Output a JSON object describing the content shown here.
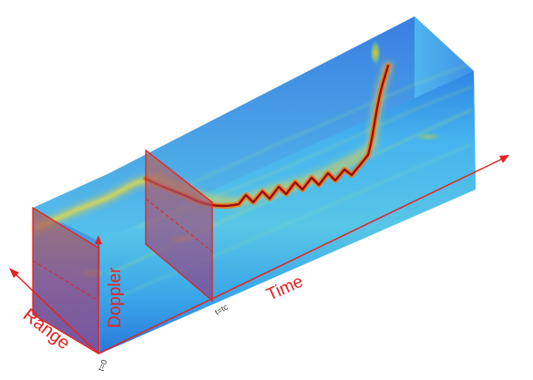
{
  "labels": {
    "range": "Range",
    "doppler": "Doppler",
    "time": "Time",
    "t0": "t=0",
    "tc": "t=tᴄ"
  },
  "colors": {
    "axis": "#e52222",
    "slice_fill": "#c03a6a",
    "background_field": "#3aa6e8",
    "top_face": "#4bb8f0",
    "hot_signal": "#8a0a0a"
  }
}
